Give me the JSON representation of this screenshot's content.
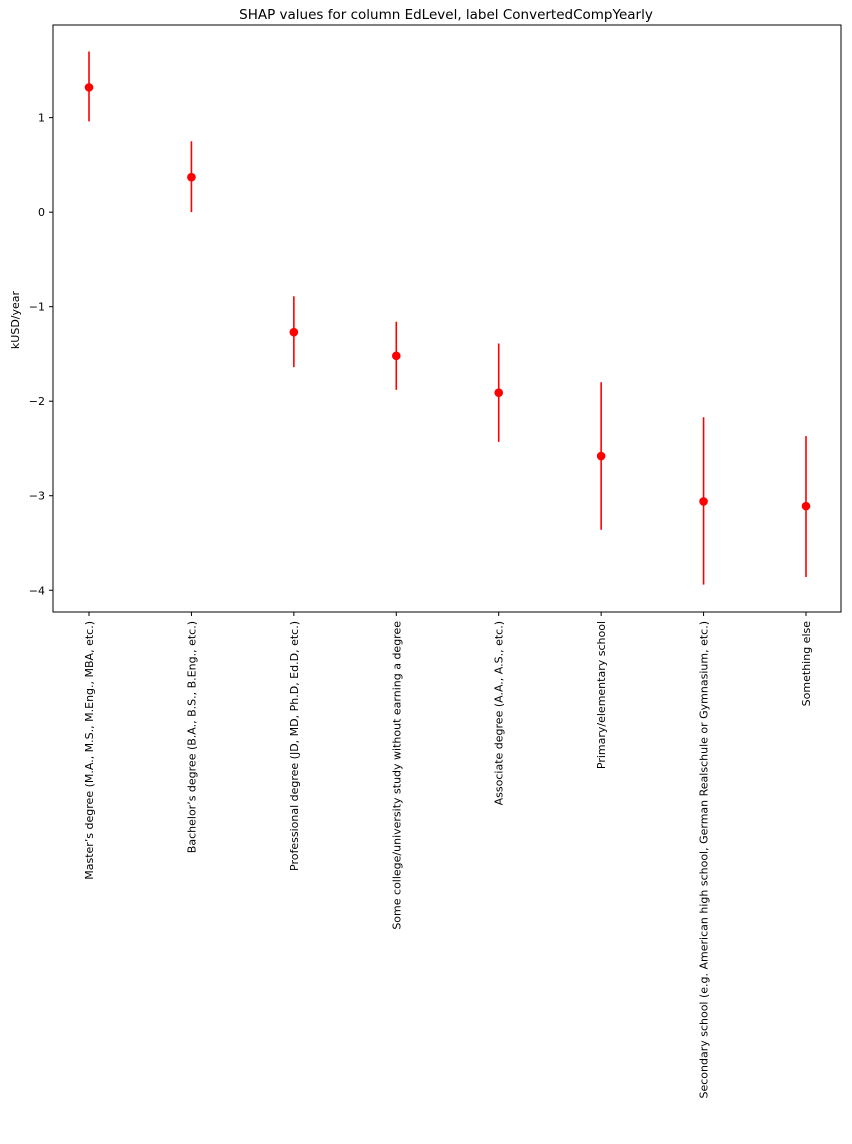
{
  "chart_data": {
    "type": "scatter",
    "title": "SHAP values for column EdLevel, label ConvertedCompYearly",
    "xlabel": "",
    "ylabel": "kUSD/year",
    "ylim": [
      -4.23,
      1.98
    ],
    "yticks": [
      1,
      0,
      -1,
      -2,
      -3,
      -4
    ],
    "ytick_labels": [
      "1",
      "0",
      "−1",
      "−2",
      "−3",
      "−4"
    ],
    "grid": false,
    "marker_color": "#ff0000",
    "categories": [
      "Master’s degree (M.A., M.S., M.Eng., MBA, etc.)",
      "Bachelor’s degree (B.A., B.S., B.Eng., etc.)",
      "Professional degree (JD, MD, Ph.D, Ed.D, etc.)",
      "Some college/university study without earning a degree",
      "Associate degree (A.A., A.S., etc.)",
      "Primary/elementary school",
      "Secondary school (e.g. American high school, German Realschule or Gymnasium, etc.)",
      "Something else"
    ],
    "values": [
      1.32,
      0.37,
      -1.27,
      -1.52,
      -1.91,
      -2.58,
      -3.06,
      -3.11
    ],
    "err_low": [
      0.96,
      0.0,
      -1.64,
      -1.88,
      -2.43,
      -3.36,
      -3.94,
      -3.86
    ],
    "err_high": [
      1.7,
      0.75,
      -0.89,
      -1.16,
      -1.39,
      -1.8,
      -2.17,
      -2.37
    ]
  }
}
